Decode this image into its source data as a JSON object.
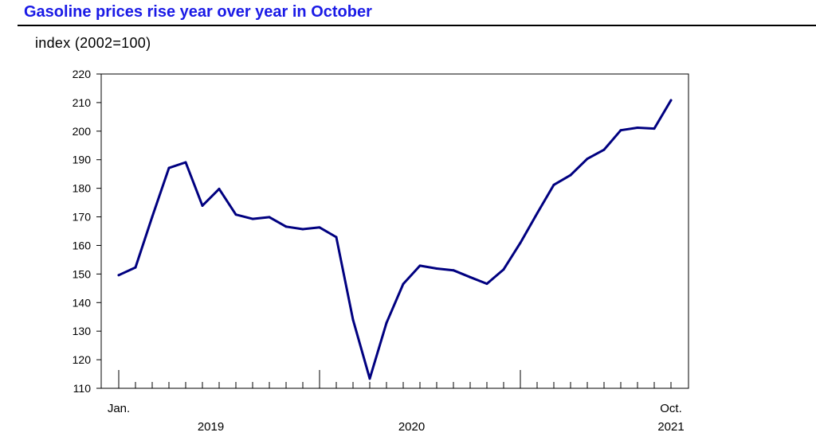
{
  "chart_data": {
    "type": "line",
    "title": "Gasoline prices rise year over year in October",
    "ylabel": "index (2002=100)",
    "xlabel": "",
    "ylim": [
      110,
      220
    ],
    "yticks": [
      110,
      120,
      130,
      140,
      150,
      160,
      170,
      180,
      190,
      200,
      210,
      220
    ],
    "grid": false,
    "legend": "none",
    "line_color": "#000080",
    "x_start_label": "Jan.",
    "x_end_label": "Oct.",
    "year_labels": [
      "2019",
      "2020",
      "2021"
    ],
    "series": [
      {
        "x": [
          "2019-01",
          "2019-02",
          "2019-03",
          "2019-04",
          "2019-05",
          "2019-06",
          "2019-07",
          "2019-08",
          "2019-09",
          "2019-10",
          "2019-11",
          "2019-12",
          "2020-01",
          "2020-02",
          "2020-03",
          "2020-04",
          "2020-05",
          "2020-06",
          "2020-07",
          "2020-08",
          "2020-09",
          "2020-10",
          "2020-11",
          "2020-12",
          "2021-01",
          "2021-02",
          "2021-03",
          "2021-04",
          "2021-05",
          "2021-06",
          "2021-07",
          "2021-08",
          "2021-09",
          "2021-10"
        ],
        "values": [
          149.6,
          152.3,
          170.0,
          187.1,
          189.1,
          173.9,
          179.8,
          170.8,
          169.3,
          169.9,
          166.6,
          165.7,
          166.3,
          162.9,
          134.0,
          113.4,
          132.9,
          146.5,
          152.9,
          151.9,
          151.3,
          148.9,
          146.6,
          151.6,
          160.9,
          171.2,
          181.2,
          184.6,
          190.3,
          193.5,
          200.3,
          201.2,
          200.9,
          210.8
        ]
      }
    ]
  }
}
